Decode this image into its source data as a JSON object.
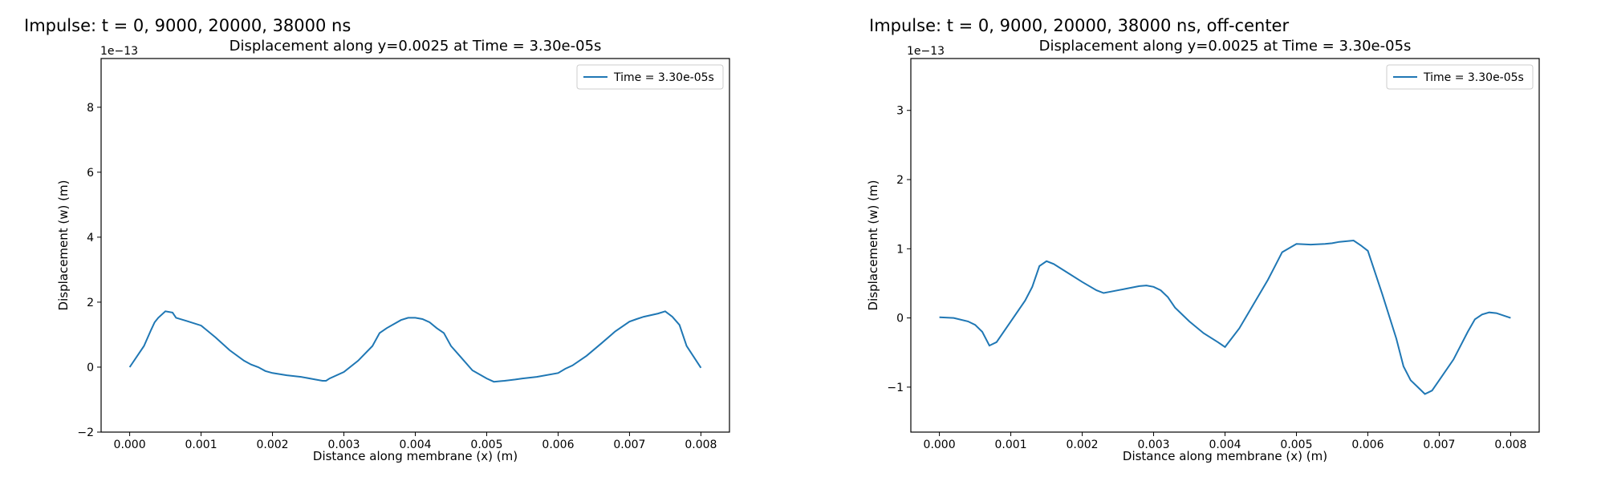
{
  "figure": {
    "left_heading": "Impulse: t = 0, 9000, 20000, 38000 ns",
    "right_heading": "Impulse: t = 0, 9000, 20000, 38000 ns, off-center"
  },
  "chart_data": [
    {
      "type": "line",
      "title": "Displacement along y=0.0025 at Time = 3.30e-05s",
      "xlabel": "Distance along membrane (x) (m)",
      "ylabel": "Displacement (w) (m)",
      "y_offset_label": "1e−13",
      "xlim": [
        -0.0004,
        0.0084
      ],
      "ylim": [
        -2.0,
        9.5
      ],
      "xticks": [
        0.0,
        0.001,
        0.002,
        0.003,
        0.004,
        0.005,
        0.006,
        0.007,
        0.008
      ],
      "xtick_labels": [
        "0.000",
        "0.001",
        "0.002",
        "0.003",
        "0.004",
        "0.005",
        "0.006",
        "0.007",
        "0.008"
      ],
      "yticks": [
        -2,
        0,
        2,
        4,
        6,
        8
      ],
      "ytick_labels": [
        "−2",
        "0",
        "2",
        "4",
        "6",
        "8"
      ],
      "grid": false,
      "legend": "upper right",
      "series": [
        {
          "name": "Time = 3.30e-05s",
          "color": "#1f77b4",
          "x": [
            0.0,
            0.0002,
            0.0003,
            0.00035,
            0.0004,
            0.0005,
            0.0006,
            0.00065,
            0.0008,
            0.001,
            0.0012,
            0.0014,
            0.0016,
            0.0017,
            0.0018,
            0.0019,
            0.002,
            0.0022,
            0.0024,
            0.0026,
            0.0027,
            0.00275,
            0.0028,
            0.003,
            0.0032,
            0.0034,
            0.0035,
            0.0036,
            0.0038,
            0.0039,
            0.004,
            0.0041,
            0.0042,
            0.0043,
            0.0044,
            0.0045,
            0.0046,
            0.0048,
            0.005,
            0.0051,
            0.0052,
            0.00525,
            0.0054,
            0.0055,
            0.0057,
            0.006,
            0.0061,
            0.0062,
            0.0064,
            0.0066,
            0.0068,
            0.007,
            0.0071,
            0.0072,
            0.0074,
            0.0075,
            0.0076,
            0.0077,
            0.0078,
            0.008
          ],
          "y": [
            0.0,
            0.65,
            1.15,
            1.38,
            1.52,
            1.72,
            1.68,
            1.52,
            1.42,
            1.28,
            0.92,
            0.52,
            0.2,
            0.08,
            0.0,
            -0.12,
            -0.18,
            -0.25,
            -0.3,
            -0.38,
            -0.42,
            -0.42,
            -0.35,
            -0.15,
            0.2,
            0.65,
            1.05,
            1.2,
            1.45,
            1.52,
            1.52,
            1.48,
            1.38,
            1.2,
            1.05,
            0.65,
            0.4,
            -0.1,
            -0.35,
            -0.45,
            -0.43,
            -0.42,
            -0.38,
            -0.35,
            -0.3,
            -0.18,
            -0.05,
            0.05,
            0.35,
            0.72,
            1.1,
            1.4,
            1.48,
            1.55,
            1.65,
            1.72,
            1.55,
            1.3,
            0.65,
            -0.02
          ]
        }
      ]
    },
    {
      "type": "line",
      "title": "Displacement along y=0.0025 at Time = 3.30e-05s",
      "xlabel": "Distance along membrane (x) (m)",
      "ylabel": "Displacement (w) (m)",
      "y_offset_label": "1e−13",
      "xlim": [
        -0.0004,
        0.0084
      ],
      "ylim": [
        -1.65,
        3.75
      ],
      "xticks": [
        0.0,
        0.001,
        0.002,
        0.003,
        0.004,
        0.005,
        0.006,
        0.007,
        0.008
      ],
      "xtick_labels": [
        "0.000",
        "0.001",
        "0.002",
        "0.003",
        "0.004",
        "0.005",
        "0.006",
        "0.007",
        "0.008"
      ],
      "yticks": [
        -1,
        0,
        1,
        2,
        3
      ],
      "ytick_labels": [
        "−1",
        "0",
        "1",
        "2",
        "3"
      ],
      "grid": false,
      "legend": "upper right",
      "series": [
        {
          "name": "Time = 3.30e-05s",
          "color": "#1f77b4",
          "x": [
            0.0,
            0.0002,
            0.0004,
            0.0005,
            0.0006,
            0.0007,
            0.0008,
            0.001,
            0.0012,
            0.0013,
            0.0014,
            0.0015,
            0.0016,
            0.0018,
            0.002,
            0.0022,
            0.0023,
            0.0024,
            0.0026,
            0.0028,
            0.0029,
            0.003,
            0.0031,
            0.0032,
            0.0033,
            0.0035,
            0.0037,
            0.0039,
            0.004,
            0.0042,
            0.0044,
            0.0046,
            0.0047,
            0.0048,
            0.005,
            0.0052,
            0.0054,
            0.0055,
            0.0056,
            0.0058,
            0.0059,
            0.006,
            0.0062,
            0.0064,
            0.0065,
            0.0066,
            0.0067,
            0.0068,
            0.0069,
            0.007,
            0.0072,
            0.0074,
            0.0075,
            0.0076,
            0.0077,
            0.0078,
            0.008
          ],
          "y": [
            0.01,
            0.0,
            -0.05,
            -0.1,
            -0.2,
            -0.4,
            -0.35,
            -0.05,
            0.25,
            0.45,
            0.75,
            0.82,
            0.78,
            0.65,
            0.52,
            0.4,
            0.36,
            0.38,
            0.42,
            0.46,
            0.47,
            0.45,
            0.4,
            0.3,
            0.15,
            -0.05,
            -0.22,
            -0.35,
            -0.42,
            -0.15,
            0.2,
            0.55,
            0.75,
            0.95,
            1.07,
            1.06,
            1.07,
            1.08,
            1.1,
            1.12,
            1.05,
            0.97,
            0.35,
            -0.3,
            -0.7,
            -0.9,
            -1.0,
            -1.1,
            -1.05,
            -0.9,
            -0.6,
            -0.2,
            -0.02,
            0.05,
            0.08,
            0.07,
            0.0
          ]
        }
      ]
    }
  ]
}
